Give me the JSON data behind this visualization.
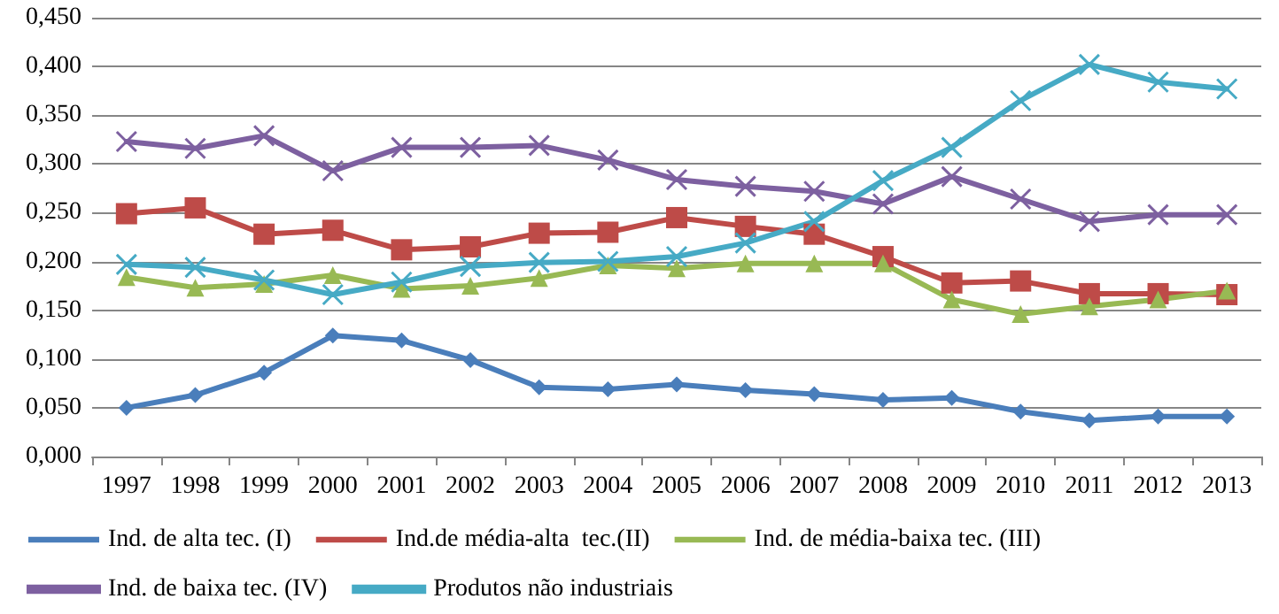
{
  "chart_data": {
    "type": "line",
    "categories": [
      "1997",
      "1998",
      "1999",
      "2000",
      "2001",
      "2002",
      "2003",
      "2004",
      "2005",
      "2006",
      "2007",
      "2008",
      "2009",
      "2010",
      "2011",
      "2012",
      "2013"
    ],
    "series": [
      {
        "name": "Ind. de alta tec. (I)",
        "color": "#4a7ebb",
        "marker": "diamond",
        "values": [
          0.05,
          0.063,
          0.086,
          0.124,
          0.119,
          0.099,
          0.071,
          0.069,
          0.074,
          0.068,
          0.064,
          0.058,
          0.06,
          0.046,
          0.037,
          0.041,
          0.041
        ]
      },
      {
        "name": "Ind.de média-alta  tec.(II)",
        "color": "#be4b48",
        "marker": "square",
        "values": [
          0.249,
          0.255,
          0.228,
          0.232,
          0.212,
          0.215,
          0.229,
          0.23,
          0.245,
          0.236,
          0.228,
          0.205,
          0.178,
          0.18,
          0.167,
          0.167,
          0.166
        ]
      },
      {
        "name": "Ind. de média-baixa tec. (III)",
        "color": "#98b954",
        "marker": "triangle",
        "values": [
          0.184,
          0.173,
          0.177,
          0.186,
          0.172,
          0.175,
          0.183,
          0.196,
          0.193,
          0.198,
          0.198,
          0.198,
          0.161,
          0.146,
          0.154,
          0.161,
          0.17
        ]
      },
      {
        "name": "Ind. de baixa tec. (IV)",
        "color": "#7d60a0",
        "marker": "cross",
        "values": [
          0.323,
          0.316,
          0.329,
          0.293,
          0.317,
          0.317,
          0.319,
          0.304,
          0.284,
          0.277,
          0.272,
          0.259,
          0.287,
          0.264,
          0.241,
          0.248,
          0.248
        ]
      },
      {
        "name": "Produtos não industriais",
        "color": "#46aac5",
        "marker": "cross",
        "values": [
          0.197,
          0.194,
          0.181,
          0.166,
          0.179,
          0.195,
          0.199,
          0.2,
          0.205,
          0.219,
          0.241,
          0.283,
          0.317,
          0.365,
          0.402,
          0.384,
          0.377
        ]
      }
    ],
    "ylim": [
      0,
      0.45
    ],
    "yticks": [
      {
        "value": 0,
        "label": "0,000"
      },
      {
        "value": 0.05,
        "label": "0,050"
      },
      {
        "value": 0.1,
        "label": "0,100"
      },
      {
        "value": 0.15,
        "label": "0,150"
      },
      {
        "value": 0.2,
        "label": "0,200"
      },
      {
        "value": 0.25,
        "label": "0,250"
      },
      {
        "value": 0.3,
        "label": "0,300"
      },
      {
        "value": 0.35,
        "label": "0,350"
      },
      {
        "value": 0.4,
        "label": "0,400"
      },
      {
        "value": 0.45,
        "label": "0,450"
      }
    ],
    "grid": "y",
    "legend": "bottom"
  }
}
